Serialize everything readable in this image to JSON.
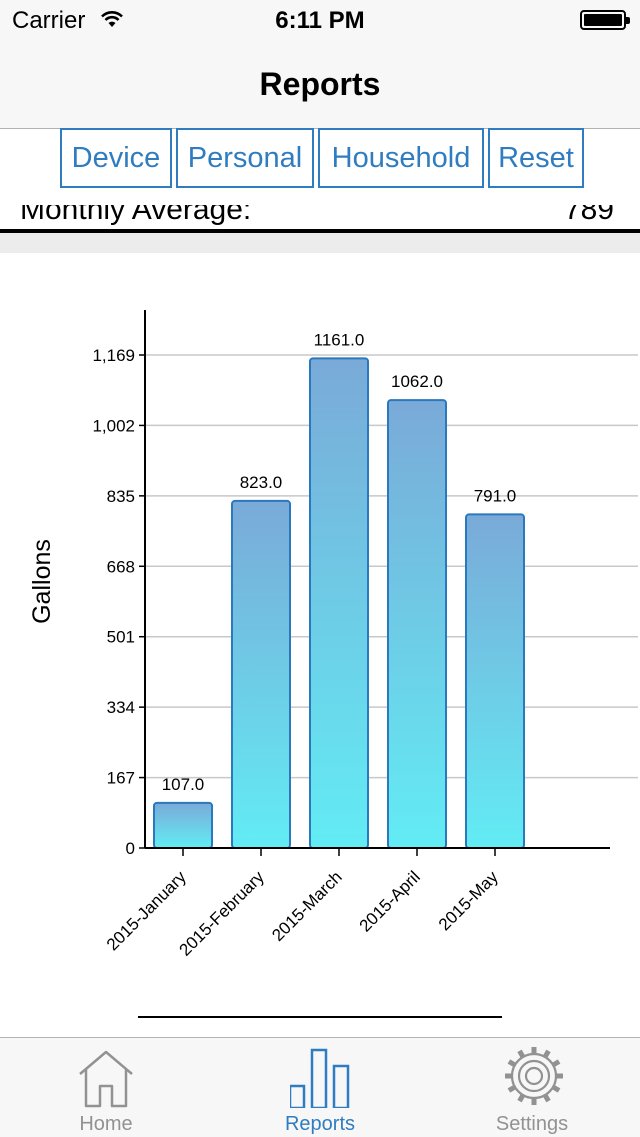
{
  "status_bar": {
    "carrier": "Carrier",
    "time": "6:11 PM"
  },
  "nav": {
    "title": "Reports"
  },
  "segments": [
    "Device",
    "Personal",
    "Household",
    "Reset"
  ],
  "summary": {
    "label": "Monthly Average:",
    "value": "789"
  },
  "chart_data": {
    "type": "bar",
    "categories": [
      "2015-January",
      "2015-February",
      "2015-March",
      "2015-April",
      "2015-May"
    ],
    "values": [
      107.0,
      823.0,
      1161.0,
      1062.0,
      791.0
    ],
    "value_labels": [
      "107.0",
      "823.0",
      "1161.0",
      "1062.0",
      "791.0"
    ],
    "ylabel": "Gallons",
    "yticks": [
      "0",
      "167",
      "334",
      "501",
      "668",
      "835",
      "1,002",
      "1,169"
    ],
    "ylim": [
      0,
      1169
    ],
    "grid": true,
    "colors": {
      "bar_top": "#7aaad8",
      "bar_bottom": "#62ecf4",
      "bar_stroke": "#2a78bd"
    }
  },
  "tabbar": {
    "items": [
      {
        "label": "Home",
        "icon": "house-icon"
      },
      {
        "label": "Reports",
        "icon": "bar-chart-icon"
      },
      {
        "label": "Settings",
        "icon": "gear-icon"
      }
    ]
  },
  "colors": {
    "accent": "#2f7dc0",
    "inactive": "#929292"
  }
}
